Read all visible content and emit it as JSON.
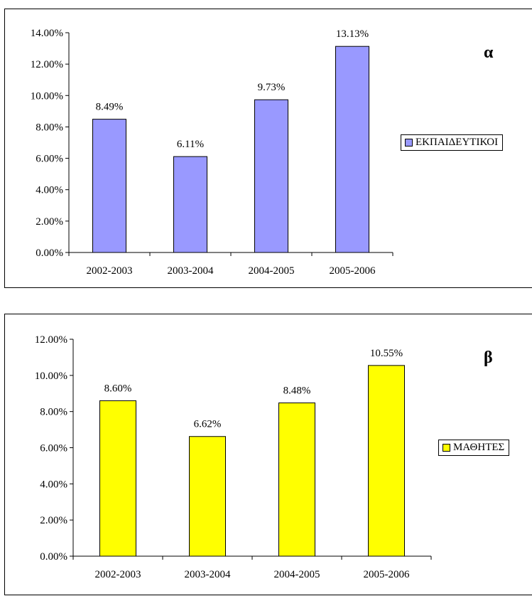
{
  "chart_data": [
    {
      "type": "bar",
      "panel_label": "α",
      "categories": [
        "2002-2003",
        "2003-2004",
        "2004-2005",
        "2005-2006"
      ],
      "series": [
        {
          "name": "ΕΚΠΑΙΔΕΥΤΙΚΟΙ",
          "values": [
            8.49,
            6.11,
            9.73,
            13.13
          ],
          "color": "#9999ff"
        }
      ],
      "data_labels": [
        "8.49%",
        "6.11%",
        "9.73%",
        "13.13%"
      ],
      "y_ticks": [
        "0.00%",
        "2.00%",
        "4.00%",
        "6.00%",
        "8.00%",
        "10.00%",
        "12.00%",
        "14.00%"
      ],
      "ylim": [
        0,
        14
      ],
      "grid": false,
      "legend_position": "right",
      "legend_label": "ΕΚΠΑΙΔΕΥΤΙΚΟΙ"
    },
    {
      "type": "bar",
      "panel_label": "β",
      "categories": [
        "2002-2003",
        "2003-2004",
        "2004-2005",
        "2005-2006"
      ],
      "series": [
        {
          "name": "ΜΑΘΗΤΕΣ",
          "values": [
            8.6,
            6.62,
            8.48,
            10.55
          ],
          "color": "#ffff00"
        }
      ],
      "data_labels": [
        "8.60%",
        "6.62%",
        "8.48%",
        "10.55%"
      ],
      "y_ticks": [
        "0.00%",
        "2.00%",
        "4.00%",
        "6.00%",
        "8.00%",
        "10.00%",
        "12.00%"
      ],
      "ylim": [
        0,
        12
      ],
      "grid": false,
      "legend_position": "right",
      "legend_label": "ΜΑΘΗΤΕΣ"
    }
  ]
}
